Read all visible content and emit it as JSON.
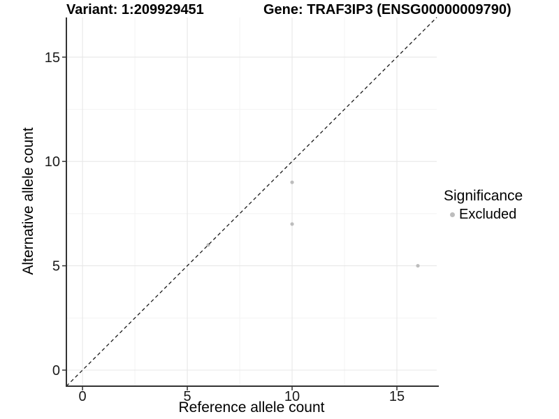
{
  "header": {
    "variant_title": "Variant: 1:209929451",
    "gene_title": "Gene: TRAF3IP3 (ENSG00000009790)"
  },
  "legend": {
    "title": "Significance",
    "items": [
      {
        "label": "Excluded",
        "color": "#bdbdbd",
        "marker": "circle-icon"
      }
    ]
  },
  "chart_data": {
    "type": "scatter",
    "title": "",
    "xlabel": "Reference allele count",
    "ylabel": "Alternative allele count",
    "xlim": [
      -0.77,
      16.9
    ],
    "ylim": [
      -0.77,
      16.9
    ],
    "x_ticks": [
      0,
      5,
      10,
      15
    ],
    "y_ticks": [
      0,
      5,
      10,
      15
    ],
    "grid": "major+minor",
    "legend_position": "right",
    "reference_line": {
      "type": "identity",
      "equation": "y = x",
      "style": "dashed",
      "color": "#1a1a1a"
    },
    "series": [
      {
        "name": "Excluded",
        "color": "#bdbdbd",
        "points": [
          [
            6,
            6
          ],
          [
            10,
            7
          ],
          [
            10,
            9
          ],
          [
            16,
            5
          ]
        ]
      }
    ],
    "colors": {
      "grid_major": "#e7e7e7",
      "grid_minor": "#f2f2f2",
      "axis": "#333333",
      "tick_text": "#1a1a1a",
      "background": "#ffffff"
    }
  }
}
